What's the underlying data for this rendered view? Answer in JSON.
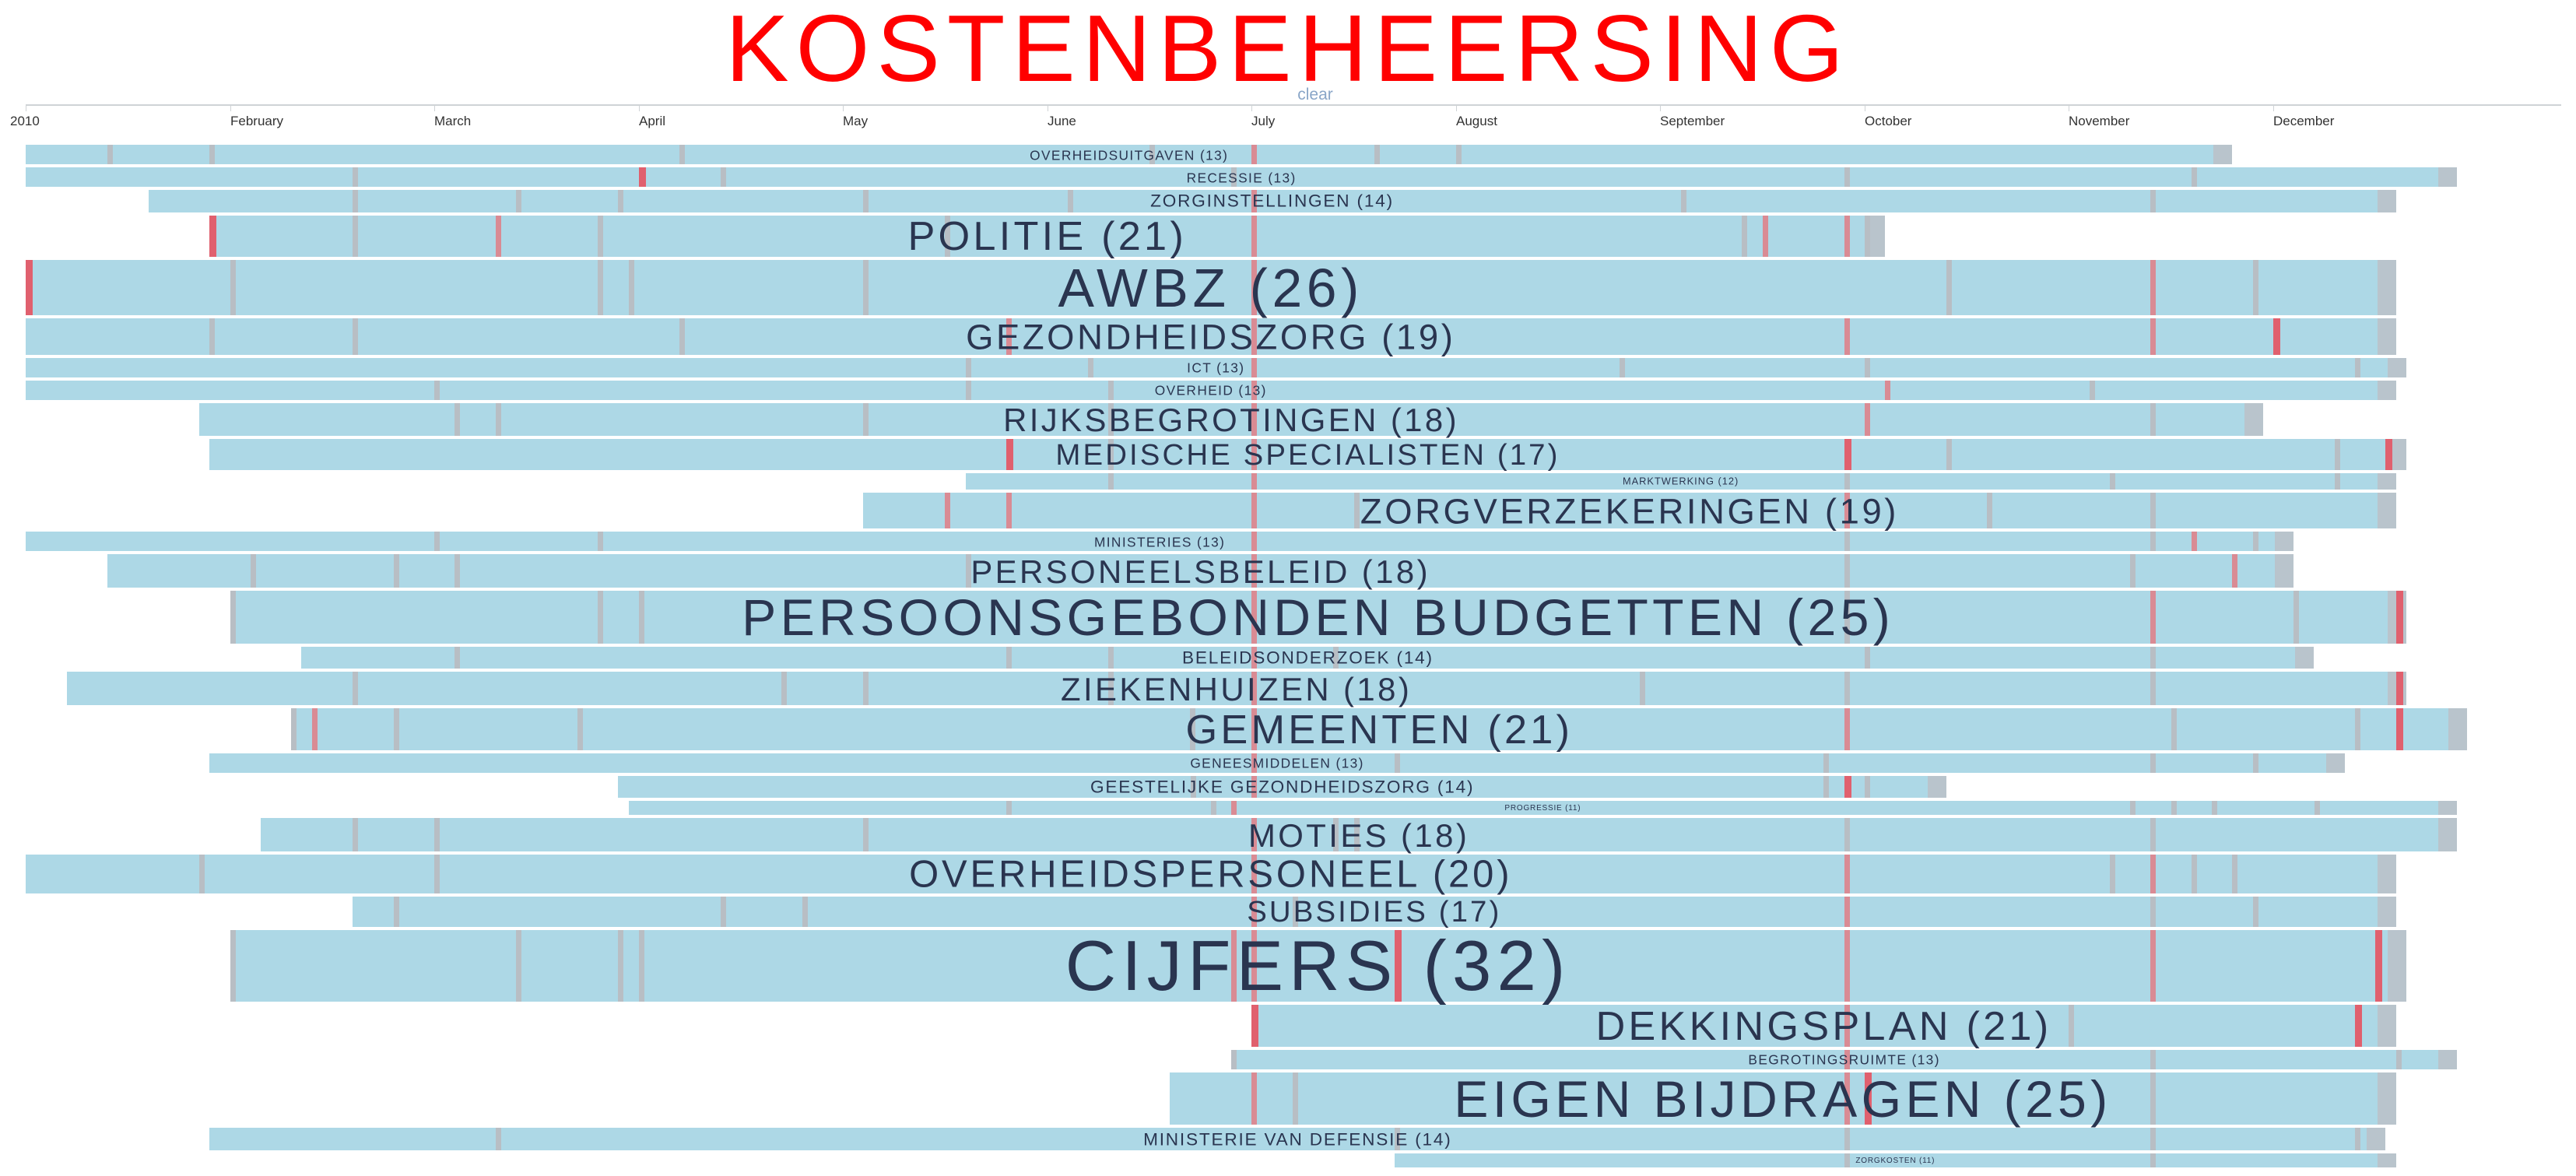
{
  "title": "KOSTENBEHEERSING",
  "clear_label": "clear",
  "colors": {
    "bar": "#add8e6",
    "bar_end": "#b9c4cc",
    "mark_grey": "#b8bec4",
    "mark_red": "#d98b94",
    "mark_strong": "#e0606e",
    "label": "#2a3550",
    "title": "#ff0000"
  },
  "chart_data": {
    "type": "timeline",
    "x_unit": "month",
    "x_range": [
      0,
      12
    ],
    "ticks": [
      {
        "label": "2010",
        "at": 0
      },
      {
        "label": "February",
        "at": 1
      },
      {
        "label": "March",
        "at": 2
      },
      {
        "label": "April",
        "at": 3
      },
      {
        "label": "May",
        "at": 4
      },
      {
        "label": "June",
        "at": 5
      },
      {
        "label": "July",
        "at": 6
      },
      {
        "label": "August",
        "at": 7
      },
      {
        "label": "September",
        "at": 8
      },
      {
        "label": "October",
        "at": 9
      },
      {
        "label": "November",
        "at": 10
      },
      {
        "label": "December",
        "at": 11
      }
    ],
    "topics": [
      {
        "name": "OVERHEIDSUITGAVEN",
        "count": 13,
        "start": 0.0,
        "end": 10.8,
        "marks": [
          [
            0.4,
            "g"
          ],
          [
            0.9,
            "g"
          ],
          [
            3.2,
            "g"
          ],
          [
            5.5,
            "g"
          ],
          [
            6.0,
            "r"
          ],
          [
            6.6,
            "g"
          ],
          [
            7.0,
            "g"
          ]
        ]
      },
      {
        "name": "RECESSIE",
        "count": 13,
        "start": 0.0,
        "end": 11.9,
        "marks": [
          [
            1.6,
            "g"
          ],
          [
            3.0,
            "s"
          ],
          [
            3.4,
            "g"
          ],
          [
            5.9,
            "g"
          ],
          [
            8.9,
            "g"
          ],
          [
            10.6,
            "g"
          ]
        ]
      },
      {
        "name": "ZORGINSTELLINGEN",
        "count": 14,
        "start": 0.6,
        "end": 11.6,
        "marks": [
          [
            1.6,
            "g"
          ],
          [
            2.4,
            "g"
          ],
          [
            2.9,
            "g"
          ],
          [
            4.1,
            "g"
          ],
          [
            5.1,
            "g"
          ],
          [
            6.0,
            "r"
          ],
          [
            8.1,
            "g"
          ],
          [
            10.4,
            "g"
          ]
        ]
      },
      {
        "name": "POLITIE",
        "count": 21,
        "start": 0.9,
        "end": 9.1,
        "marks": [
          [
            0.9,
            "s"
          ],
          [
            1.6,
            "g"
          ],
          [
            2.3,
            "r"
          ],
          [
            2.8,
            "g"
          ],
          [
            4.5,
            "g"
          ],
          [
            6.0,
            "r"
          ],
          [
            8.4,
            "g"
          ],
          [
            8.5,
            "r"
          ],
          [
            8.9,
            "r"
          ],
          [
            9.0,
            "g"
          ]
        ]
      },
      {
        "name": "AWBZ",
        "count": 26,
        "start": 0.0,
        "end": 11.6,
        "marks": [
          [
            0.0,
            "s"
          ],
          [
            1.0,
            "g"
          ],
          [
            2.8,
            "g"
          ],
          [
            2.95,
            "g"
          ],
          [
            4.1,
            "g"
          ],
          [
            6.0,
            "r"
          ],
          [
            9.4,
            "g"
          ],
          [
            10.4,
            "r"
          ],
          [
            10.9,
            "g"
          ]
        ]
      },
      {
        "name": "GEZONDHEIDSZORG",
        "count": 19,
        "start": 0.0,
        "end": 11.6,
        "marks": [
          [
            0.9,
            "g"
          ],
          [
            1.6,
            "g"
          ],
          [
            3.2,
            "g"
          ],
          [
            4.8,
            "r"
          ],
          [
            6.0,
            "r"
          ],
          [
            8.9,
            "r"
          ],
          [
            10.4,
            "r"
          ],
          [
            11.0,
            "s"
          ]
        ]
      },
      {
        "name": "ICT",
        "count": 13,
        "start": 0.0,
        "end": 11.65,
        "marks": [
          [
            4.6,
            "g"
          ],
          [
            5.2,
            "g"
          ],
          [
            6.0,
            "r"
          ],
          [
            7.8,
            "g"
          ],
          [
            9.0,
            "g"
          ],
          [
            11.4,
            "g"
          ]
        ]
      },
      {
        "name": "OVERHEID",
        "count": 13,
        "start": 0.0,
        "end": 11.6,
        "marks": [
          [
            2.0,
            "g"
          ],
          [
            4.6,
            "g"
          ],
          [
            5.3,
            "g"
          ],
          [
            6.0,
            "r"
          ],
          [
            9.1,
            "r"
          ],
          [
            10.1,
            "g"
          ]
        ]
      },
      {
        "name": "RIJKSBEGROTINGEN",
        "count": 18,
        "start": 0.85,
        "end": 10.95,
        "marks": [
          [
            2.1,
            "g"
          ],
          [
            2.3,
            "g"
          ],
          [
            4.1,
            "g"
          ],
          [
            5.3,
            "g"
          ],
          [
            6.0,
            "r"
          ],
          [
            9.0,
            "r"
          ],
          [
            10.4,
            "g"
          ]
        ]
      },
      {
        "name": "MEDISCHE SPECIALISTEN",
        "count": 17,
        "start": 0.9,
        "end": 11.65,
        "marks": [
          [
            4.8,
            "s"
          ],
          [
            5.3,
            "g"
          ],
          [
            6.0,
            "r"
          ],
          [
            8.9,
            "s"
          ],
          [
            9.4,
            "g"
          ],
          [
            11.3,
            "g"
          ],
          [
            11.55,
            "s"
          ]
        ]
      },
      {
        "name": "MARKTWERKING",
        "count": 12,
        "start": 4.6,
        "end": 11.6,
        "marks": [
          [
            5.3,
            "g"
          ],
          [
            6.0,
            "r"
          ],
          [
            8.9,
            "g"
          ],
          [
            10.2,
            "g"
          ],
          [
            11.3,
            "g"
          ]
        ]
      },
      {
        "name": "ZORGVERZEKERINGEN",
        "count": 19,
        "start": 4.1,
        "end": 11.6,
        "marks": [
          [
            4.5,
            "r"
          ],
          [
            4.8,
            "r"
          ],
          [
            6.0,
            "r"
          ],
          [
            6.5,
            "g"
          ],
          [
            8.9,
            "r"
          ],
          [
            9.6,
            "g"
          ],
          [
            10.4,
            "g"
          ]
        ]
      },
      {
        "name": "MINISTERIES",
        "count": 13,
        "start": 0.0,
        "end": 11.1,
        "marks": [
          [
            2.0,
            "g"
          ],
          [
            2.8,
            "g"
          ],
          [
            6.0,
            "r"
          ],
          [
            8.9,
            "g"
          ],
          [
            10.4,
            "g"
          ],
          [
            10.6,
            "r"
          ],
          [
            10.9,
            "g"
          ]
        ]
      },
      {
        "name": "PERSONEELSBELEID",
        "count": 18,
        "start": 0.4,
        "end": 11.1,
        "marks": [
          [
            1.1,
            "g"
          ],
          [
            1.8,
            "g"
          ],
          [
            2.1,
            "g"
          ],
          [
            4.6,
            "g"
          ],
          [
            6.0,
            "r"
          ],
          [
            8.9,
            "g"
          ],
          [
            10.3,
            "g"
          ],
          [
            10.8,
            "r"
          ]
        ]
      },
      {
        "name": "PERSOONSGEBONDEN BUDGETTEN",
        "count": 25,
        "start": 1.0,
        "end": 11.65,
        "marks": [
          [
            1.0,
            "g"
          ],
          [
            2.8,
            "g"
          ],
          [
            3.0,
            "g"
          ],
          [
            6.0,
            "r"
          ],
          [
            8.9,
            "g"
          ],
          [
            10.4,
            "r"
          ],
          [
            11.1,
            "g"
          ],
          [
            11.6,
            "s"
          ]
        ]
      },
      {
        "name": "BELEIDSONDERZOEK",
        "count": 14,
        "start": 1.35,
        "end": 11.2,
        "marks": [
          [
            2.1,
            "g"
          ],
          [
            4.8,
            "g"
          ],
          [
            5.3,
            "g"
          ],
          [
            6.0,
            "r"
          ],
          [
            6.4,
            "g"
          ],
          [
            9.0,
            "g"
          ],
          [
            10.4,
            "g"
          ]
        ]
      },
      {
        "name": "ZIEKENHUIZEN",
        "count": 18,
        "start": 0.2,
        "end": 11.65,
        "marks": [
          [
            1.6,
            "g"
          ],
          [
            3.7,
            "g"
          ],
          [
            4.1,
            "g"
          ],
          [
            5.3,
            "g"
          ],
          [
            6.0,
            "r"
          ],
          [
            7.9,
            "g"
          ],
          [
            8.9,
            "g"
          ],
          [
            10.4,
            "g"
          ],
          [
            11.6,
            "s"
          ]
        ]
      },
      {
        "name": "GEMEENTEN",
        "count": 21,
        "start": 1.3,
        "end": 11.95,
        "marks": [
          [
            1.3,
            "g"
          ],
          [
            1.4,
            "r"
          ],
          [
            1.8,
            "g"
          ],
          [
            2.7,
            "g"
          ],
          [
            5.7,
            "g"
          ],
          [
            6.0,
            "r"
          ],
          [
            8.9,
            "r"
          ],
          [
            10.5,
            "g"
          ],
          [
            11.4,
            "g"
          ],
          [
            11.6,
            "s"
          ]
        ]
      },
      {
        "name": "GENEESMIDDELEN",
        "count": 13,
        "start": 0.9,
        "end": 11.35,
        "marks": [
          [
            6.0,
            "r"
          ],
          [
            6.7,
            "g"
          ],
          [
            8.8,
            "g"
          ],
          [
            10.4,
            "g"
          ],
          [
            10.9,
            "g"
          ]
        ]
      },
      {
        "name": "GEESTELIJKE GEZONDHEIDSZORG",
        "count": 14,
        "start": 2.9,
        "end": 9.4,
        "marks": [
          [
            5.7,
            "g"
          ],
          [
            6.0,
            "r"
          ],
          [
            8.8,
            "g"
          ],
          [
            8.9,
            "s"
          ],
          [
            9.0,
            "g"
          ]
        ]
      },
      {
        "name": "PROGRESSIE",
        "count": 11,
        "start": 2.95,
        "end": 11.9,
        "marks": [
          [
            4.8,
            "g"
          ],
          [
            5.8,
            "g"
          ],
          [
            5.9,
            "r"
          ],
          [
            10.3,
            "g"
          ],
          [
            10.5,
            "g"
          ],
          [
            10.7,
            "g"
          ],
          [
            11.2,
            "g"
          ]
        ]
      },
      {
        "name": "MOTIES",
        "count": 18,
        "start": 1.15,
        "end": 11.9,
        "marks": [
          [
            1.6,
            "g"
          ],
          [
            2.0,
            "g"
          ],
          [
            4.1,
            "g"
          ],
          [
            6.0,
            "r"
          ],
          [
            6.4,
            "g"
          ],
          [
            6.5,
            "g"
          ],
          [
            8.9,
            "g"
          ],
          [
            10.4,
            "g"
          ]
        ]
      },
      {
        "name": "OVERHEIDSPERSONEEL",
        "count": 20,
        "start": 0.0,
        "end": 11.6,
        "marks": [
          [
            0.85,
            "g"
          ],
          [
            2.0,
            "g"
          ],
          [
            6.0,
            "r"
          ],
          [
            8.9,
            "r"
          ],
          [
            10.2,
            "g"
          ],
          [
            10.4,
            "r"
          ],
          [
            10.6,
            "g"
          ],
          [
            10.8,
            "g"
          ]
        ]
      },
      {
        "name": "SUBSIDIES",
        "count": 17,
        "start": 1.6,
        "end": 11.6,
        "marks": [
          [
            1.8,
            "g"
          ],
          [
            3.4,
            "g"
          ],
          [
            3.8,
            "g"
          ],
          [
            6.0,
            "r"
          ],
          [
            6.2,
            "g"
          ],
          [
            8.9,
            "r"
          ],
          [
            10.4,
            "g"
          ],
          [
            10.9,
            "g"
          ]
        ]
      },
      {
        "name": "CIJFERS",
        "count": 32,
        "start": 1.0,
        "end": 11.65,
        "marks": [
          [
            1.0,
            "g"
          ],
          [
            2.4,
            "g"
          ],
          [
            2.9,
            "g"
          ],
          [
            3.0,
            "g"
          ],
          [
            5.9,
            "r"
          ],
          [
            6.0,
            "r"
          ],
          [
            6.7,
            "s"
          ],
          [
            8.9,
            "r"
          ],
          [
            10.4,
            "r"
          ],
          [
            11.5,
            "s"
          ]
        ]
      },
      {
        "name": "DEKKINGSPLAN",
        "count": 21,
        "start": 6.0,
        "end": 11.6,
        "marks": [
          [
            6.0,
            "s"
          ],
          [
            8.9,
            "r"
          ],
          [
            10.0,
            "g"
          ],
          [
            11.4,
            "s"
          ]
        ]
      },
      {
        "name": "BEGROTINGSRUIMTE",
        "count": 13,
        "start": 5.9,
        "end": 11.9,
        "marks": [
          [
            5.9,
            "g"
          ],
          [
            8.9,
            "r"
          ],
          [
            10.4,
            "g"
          ],
          [
            11.6,
            "g"
          ]
        ]
      },
      {
        "name": "EIGEN BIJDRAGEN",
        "count": 25,
        "start": 5.6,
        "end": 11.6,
        "marks": [
          [
            6.0,
            "r"
          ],
          [
            6.2,
            "g"
          ],
          [
            8.9,
            "r"
          ],
          [
            9.0,
            "s"
          ],
          [
            10.4,
            "g"
          ]
        ]
      },
      {
        "name": "MINISTERIE VAN DEFENSIE",
        "count": 14,
        "start": 0.9,
        "end": 11.55,
        "marks": [
          [
            2.3,
            "g"
          ],
          [
            6.7,
            "g"
          ],
          [
            8.9,
            "g"
          ],
          [
            10.4,
            "g"
          ],
          [
            11.4,
            "g"
          ]
        ]
      },
      {
        "name": "ZORGKOSTEN",
        "count": 11,
        "start": 6.7,
        "end": 11.6,
        "marks": [
          [
            8.9,
            "g"
          ],
          [
            10.4,
            "g"
          ]
        ]
      }
    ]
  }
}
